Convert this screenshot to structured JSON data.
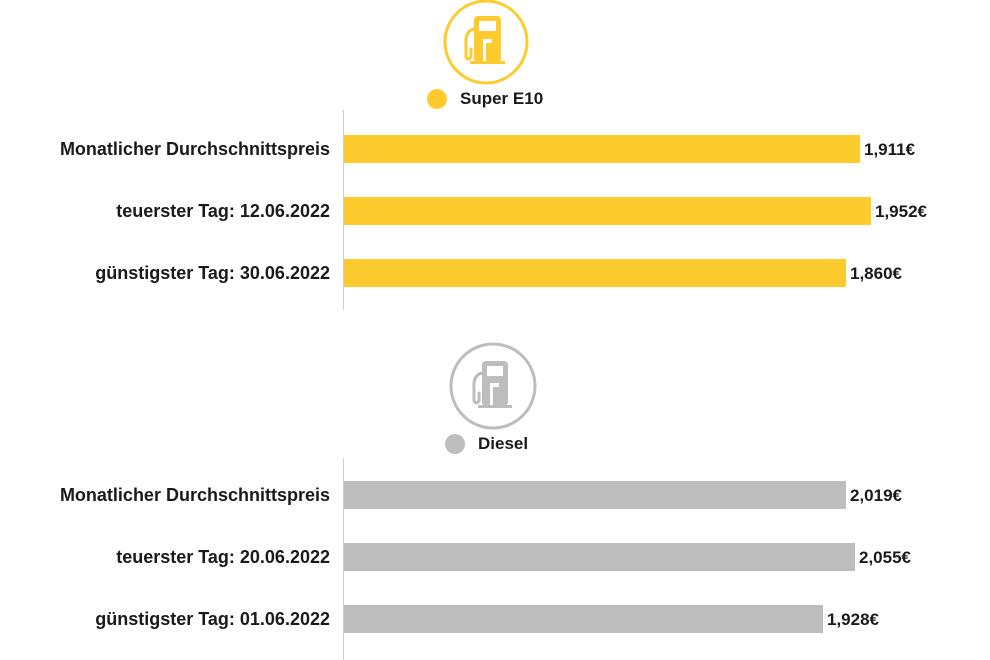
{
  "colors": {
    "super_e10": "#fecb2f",
    "diesel": "#bdbdbd",
    "axis": "#cfcfcf"
  },
  "chart_data": [
    {
      "type": "bar",
      "orientation": "horizontal",
      "icon": "fuel-pump-icon",
      "legend": "Super E10",
      "color": "#fecb2f",
      "categories": [
        "Monatlicher Durchschnittspreis",
        "teuerster Tag: 12.06.2022",
        "günstigster Tag: 30.06.2022"
      ],
      "values": [
        1.911,
        1.952,
        1.86
      ],
      "value_labels": [
        "1,911€",
        "1,952€",
        "1,860€"
      ],
      "xlim": [
        0,
        1.952
      ]
    },
    {
      "type": "bar",
      "orientation": "horizontal",
      "icon": "fuel-pump-icon",
      "legend": "Diesel",
      "color": "#bdbdbd",
      "categories": [
        "Monatlicher Durchschnittspreis",
        "teuerster Tag: 20.06.2022",
        "günstigster Tag: 01.06.2022"
      ],
      "values": [
        2.019,
        2.055,
        1.928
      ],
      "value_labels": [
        "2,019€",
        "2,055€",
        "1,928€"
      ],
      "xlim": [
        0,
        2.055
      ]
    }
  ]
}
